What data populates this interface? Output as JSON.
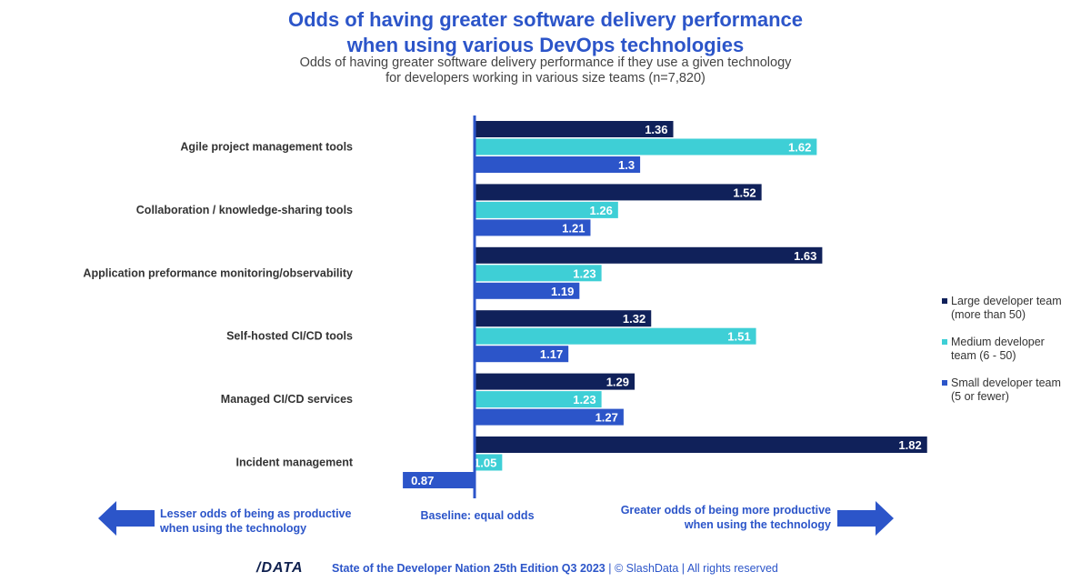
{
  "header": {
    "title_line1": "Odds of having greater software delivery performance",
    "title_line2": "when using various DevOps technologies",
    "subtitle_line1": "Odds of having greater software delivery performance if they use a given technology",
    "subtitle_line2": "for developers working in various size teams (n=7,820)"
  },
  "legend": {
    "large_line1": "Large developer team",
    "large_line2": "(more than 50)",
    "medium_line1": "Medium developer",
    "medium_line2": "team (6 - 50)",
    "small_line1": "Small developer team",
    "small_line2": "(5 or fewer)"
  },
  "notes": {
    "lesser_line1": "Lesser odds of being as productive",
    "lesser_line2": "when using the technology",
    "baseline": "Baseline: equal odds",
    "greater_line1": "Greater odds of being more productive",
    "greater_line2": "when using  the technology"
  },
  "footer": {
    "logo": "/DATA",
    "edition": "State of the Developer Nation 25th Edition Q3 2023",
    "rest": " | © SlashData | All rights reserved"
  },
  "colors": {
    "large": "#10215a",
    "medium": "#3ecfd6",
    "small": "#2c55c9",
    "accent": "#2c55c9"
  },
  "chart_data": {
    "type": "bar",
    "orientation": "horizontal",
    "baseline": 1,
    "categories": [
      "Agile project management tools",
      "Collaboration / knowledge-sharing tools",
      "Application preformance monitoring/observability",
      "Self-hosted CI/CD tools",
      "Managed CI/CD services",
      "Incident management"
    ],
    "series": [
      {
        "name": "Large developer team (more than 50)",
        "color": "#10215a",
        "values": [
          1.36,
          1.52,
          1.63,
          1.32,
          1.29,
          1.82
        ]
      },
      {
        "name": "Medium developer team (6 - 50)",
        "color": "#3ecfd6",
        "values": [
          1.62,
          1.26,
          1.23,
          1.51,
          1.23,
          1.05
        ]
      },
      {
        "name": "Small developer team (5 or fewer)",
        "color": "#2c55c9",
        "values": [
          1.3,
          1.21,
          1.19,
          1.17,
          1.27,
          0.87
        ]
      }
    ],
    "legend_position": "right",
    "grid": false
  }
}
